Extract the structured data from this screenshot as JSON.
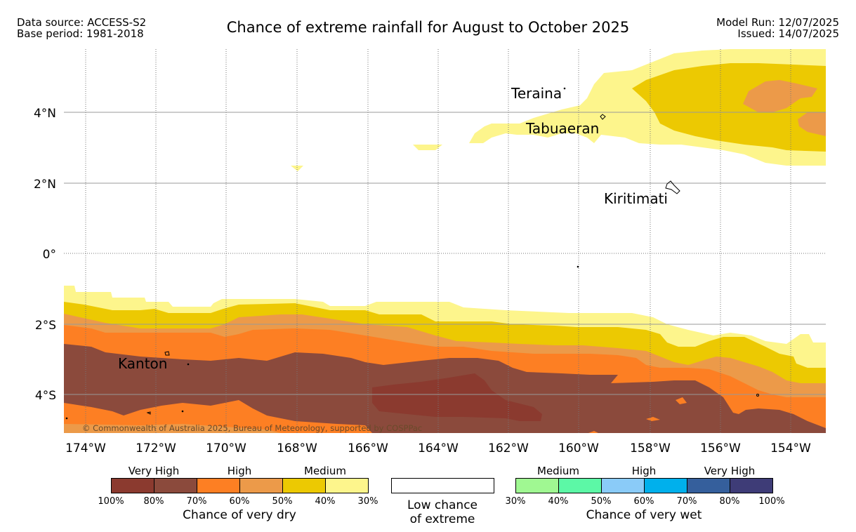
{
  "header": {
    "data_source": "Data source: ACCESS-S2",
    "base_period": "Base period: 1981-2018",
    "title": "Chance of extreme rainfall for August to October 2025",
    "model_run": "Model Run: 12/07/2025",
    "issued": "Issued: 14/07/2025"
  },
  "map": {
    "longitude_labels": [
      "174°W",
      "172°W",
      "170°W",
      "168°W",
      "166°W",
      "164°W",
      "162°W",
      "160°W",
      "158°W",
      "156°W",
      "154°W"
    ],
    "latitude_labels": [
      "4°N",
      "2°N",
      "0°",
      "2°S",
      "4°S"
    ],
    "places": {
      "teraina": "Teraina",
      "tabuaeran": "Tabuaeran",
      "kiritimati": "Kiritimati",
      "kanton": "Kanton"
    },
    "copyright": "© Commonwealth of Australia 2025, Bureau of Meteorology, supported by COSPPac",
    "colors": {
      "dry_100_80": "#8b3a2f",
      "dry_80_70": "#8b4a3c",
      "dry_70_60": "#fd7f23",
      "dry_60_50": "#ec9a49",
      "dry_50_40": "#ecc902",
      "dry_40_30": "#fdf58c",
      "low": "#ffffff",
      "wet_30_40": "#a0f892",
      "wet_40_50": "#5cf8a6",
      "wet_50_60": "#8acbf8",
      "wet_60_70": "#00b0ec",
      "wet_70_80": "#355f9c",
      "wet_80_100": "#3e3c77"
    }
  },
  "legend": {
    "dry": {
      "category_labels": [
        "Very High",
        "High",
        "Medium"
      ],
      "ticks": [
        "100%",
        "80%",
        "70%",
        "60%",
        "50%",
        "40%",
        "30%"
      ],
      "title": "Chance of very dry",
      "colors": [
        "#8b3a2f",
        "#8b4a3c",
        "#fd7f23",
        "#ec9a49",
        "#ecc902",
        "#fdf58c"
      ]
    },
    "low": {
      "line1": "Low chance",
      "line2": "of extreme"
    },
    "wet": {
      "category_labels": [
        "Medium",
        "High",
        "Very High"
      ],
      "ticks": [
        "30%",
        "40%",
        "50%",
        "60%",
        "70%",
        "80%",
        "100%"
      ],
      "title": "Chance of very wet",
      "colors": [
        "#a0f892",
        "#5cf8a6",
        "#8acbf8",
        "#00b0ec",
        "#355f9c",
        "#3e3c77"
      ]
    }
  }
}
